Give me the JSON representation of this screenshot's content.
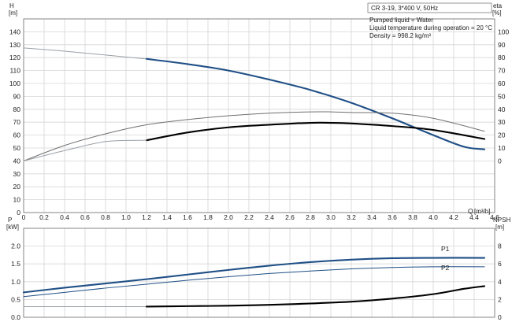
{
  "header": {
    "pump_model": "CR 3-19, 3*400 V, 50Hz",
    "info_lines": [
      "Pumped liquid = Water",
      "Liquid temperature during operation = 20 °C",
      "Density = 998.2 kg/m³"
    ]
  },
  "chart_data": [
    {
      "type": "line",
      "panel": "head-efficiency",
      "ylabel_left": "H",
      "yunit_left": "[m]",
      "ylabel_right": "eta",
      "yunit_right": "[%]",
      "xlabel": "Q",
      "xunit": "[m³/h]",
      "xlim": [
        0,
        4.6
      ],
      "ylim_left": [
        0,
        150
      ],
      "ylim_right": [
        -40,
        110
      ],
      "xticks": [
        "0",
        "0.2",
        "0.4",
        "0.6",
        "0.8",
        "1.0",
        "1.2",
        "1.4",
        "1.6",
        "1.8",
        "2.0",
        "2.2",
        "2.4",
        "2.6",
        "2.8",
        "3.0",
        "3.2",
        "3.4",
        "3.6",
        "3.8",
        "4.0",
        "4.2",
        "4.4",
        "4.6"
      ],
      "yticks_left": [
        "0",
        "10",
        "20",
        "30",
        "40",
        "50",
        "60",
        "70",
        "80",
        "90",
        "100",
        "110",
        "120",
        "130",
        "140"
      ],
      "yticks_right": [
        "0",
        "10",
        "20",
        "30",
        "40",
        "50",
        "60",
        "70",
        "80",
        "90",
        "100"
      ],
      "grid": true,
      "series": [
        {
          "color": "#9aa0a6",
          "axis": "left",
          "style": "thin",
          "x": [
            0,
            0.4,
            0.8,
            1.2
          ],
          "y": [
            127.5,
            125,
            122,
            119
          ]
        },
        {
          "color": "#1f4f86",
          "axis": "left",
          "style": "thick",
          "x": [
            1.2,
            1.6,
            2.0,
            2.4,
            2.8,
            3.2,
            3.6,
            4.0,
            4.3,
            4.5
          ],
          "y": [
            119,
            115,
            110,
            103,
            95,
            85,
            73,
            60,
            51,
            49
          ]
        },
        {
          "color": "#6f6f6f",
          "axis": "right",
          "style": "thin",
          "x": [
            0,
            0.4,
            0.8,
            1.2,
            1.6,
            2.0,
            2.4,
            2.8,
            3.0,
            3.2,
            3.6,
            4.0,
            4.5
          ],
          "y": [
            0,
            12,
            21,
            28,
            32,
            35,
            37,
            38,
            38,
            37.5,
            37,
            33,
            23
          ]
        },
        {
          "color": "#000000",
          "axis": "right",
          "style": "thick",
          "x": [
            1.2,
            1.6,
            2.0,
            2.4,
            2.8,
            3.0,
            3.2,
            3.6,
            4.0,
            4.5
          ],
          "y": [
            16,
            22,
            26,
            28,
            29.5,
            29.5,
            29,
            27,
            24,
            17
          ]
        },
        {
          "color": "#9aa0a6",
          "axis": "right",
          "style": "thin",
          "x": [
            0,
            0.4,
            0.8,
            1.2
          ],
          "y": [
            0,
            8,
            15,
            16
          ]
        }
      ]
    },
    {
      "type": "line",
      "panel": "power-npsh",
      "ylabel_left": "P",
      "yunit_left": "[kW]",
      "ylabel_right": "NPSH",
      "yunit_right": "[m]",
      "xlim": [
        0,
        4.6
      ],
      "ylim_left": [
        0,
        2.5
      ],
      "ylim_right": [
        0,
        10
      ],
      "yticks_left": [
        "0.0",
        "0.5",
        "1.0",
        "1.5",
        "2.0"
      ],
      "yticks_right": [
        "0",
        "2",
        "4",
        "6",
        "8"
      ],
      "grid": true,
      "series": [
        {
          "name": "P1",
          "color": "#1f4f86",
          "axis": "left",
          "style": "thick",
          "x": [
            0,
            0.4,
            0.8,
            1.2,
            1.6,
            2.0,
            2.4,
            2.8,
            3.2,
            3.6,
            4.0,
            4.5
          ],
          "y": [
            0.7,
            0.83,
            0.95,
            1.07,
            1.2,
            1.33,
            1.45,
            1.55,
            1.62,
            1.66,
            1.67,
            1.67
          ]
        },
        {
          "name": "P2",
          "color": "#1f4f86",
          "axis": "left",
          "style": "thin",
          "x": [
            0,
            0.4,
            0.8,
            1.2,
            1.6,
            2.0,
            2.4,
            2.8,
            3.2,
            3.6,
            4.0,
            4.5
          ],
          "y": [
            0.58,
            0.7,
            0.82,
            0.93,
            1.04,
            1.14,
            1.23,
            1.3,
            1.36,
            1.4,
            1.42,
            1.42
          ]
        },
        {
          "color": "#9aa0a6",
          "axis": "right",
          "style": "thin",
          "x": [
            0,
            1.2
          ],
          "y": [
            1.2,
            1.2
          ]
        },
        {
          "color": "#000000",
          "axis": "right",
          "style": "thick",
          "x": [
            1.2,
            1.6,
            2.0,
            2.4,
            2.8,
            3.2,
            3.6,
            4.0,
            4.3,
            4.5
          ],
          "y": [
            1.2,
            1.25,
            1.3,
            1.4,
            1.55,
            1.75,
            2.1,
            2.6,
            3.2,
            3.5
          ]
        }
      ]
    }
  ]
}
